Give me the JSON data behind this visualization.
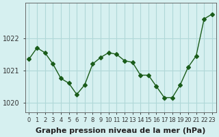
{
  "x": [
    0,
    1,
    2,
    3,
    4,
    5,
    6,
    7,
    8,
    9,
    10,
    11,
    12,
    13,
    14,
    15,
    16,
    17,
    18,
    19,
    20,
    21,
    22,
    23
  ],
  "y": [
    1021.35,
    1021.7,
    1021.55,
    1021.2,
    1020.75,
    1020.6,
    1020.25,
    1020.55,
    1021.2,
    1021.4,
    1021.55,
    1021.5,
    1021.3,
    1021.25,
    1020.85,
    1020.85,
    1020.5,
    1020.15,
    1020.15,
    1020.55,
    1021.1,
    1021.45,
    1022.6,
    1022.75
  ],
  "line_color": "#1a5c1a",
  "marker": "D",
  "marker_size": 3,
  "background_color": "#d6f0f0",
  "grid_color": "#b0d8d8",
  "ylabel_ticks": [
    1020,
    1021,
    1022
  ],
  "xlabel_label": "Graphe pression niveau de la mer (hPa)",
  "xlim": [
    -0.5,
    23.5
  ],
  "ylim": [
    1019.7,
    1023.1
  ],
  "tick_fontsize": 7,
  "label_fontsize": 8
}
